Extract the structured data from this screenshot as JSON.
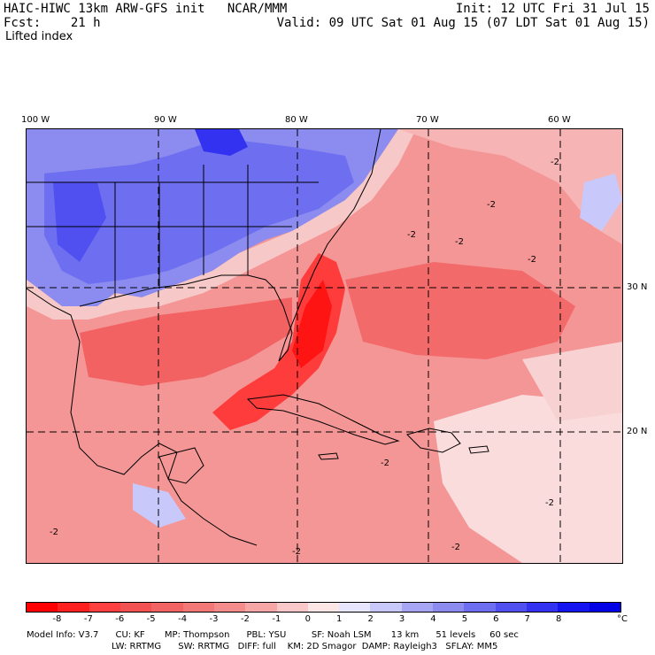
{
  "header": {
    "title_left": "HAIC-HIWC 13km ARW-GFS init   NCAR/MMM",
    "fcst_left": "Fcst:    21 h",
    "init_right": "Init: 12 UTC Fri 31 Jul 15",
    "valid_right": "Valid: 09 UTC Sat 01 Aug 15 (07 LDT Sat 01 Aug 15)",
    "field_name": "Lifted index"
  },
  "map": {
    "lon_labels": [
      "100 W",
      "90 W",
      "80 W",
      "70 W",
      "60 W"
    ],
    "lat_labels": [
      "30 N",
      "20 N"
    ],
    "contour_labels": [
      "-2",
      "-2",
      "-2",
      "-2",
      "-2",
      "-2",
      "-2",
      "-2",
      "-2",
      "-2"
    ]
  },
  "colorbar": {
    "labels": [
      "-8",
      "-7",
      "-6",
      "-5",
      "-4",
      "-3",
      "-2",
      "-1",
      "0",
      "1",
      "2",
      "3",
      "4",
      "5",
      "6",
      "7",
      "8"
    ],
    "unit": "°C",
    "colors": [
      "#ff0000",
      "#ff2020",
      "#ff4040",
      "#f25252",
      "#f26464",
      "#f27878",
      "#f58c8c",
      "#f7a6a6",
      "#fac8c8",
      "#fde6e6",
      "#e6e6fd",
      "#c8c8fa",
      "#a6a6f5",
      "#8c8cf0",
      "#6e6ef0",
      "#5050f0",
      "#3232f0",
      "#1414f0",
      "#0000e6"
    ]
  },
  "model_info": {
    "line1": "Model Info: V3.7      CU: KF       MP: Thompson      PBL: YSU         SF: Noah LSM       13 km      51 levels     60 sec",
    "line2": "LW: RRTMG      SW: RRTMG   DIFF: full    KM: 2D Smagor  DAMP: Rayleigh3   SFLAY: MM5"
  }
}
